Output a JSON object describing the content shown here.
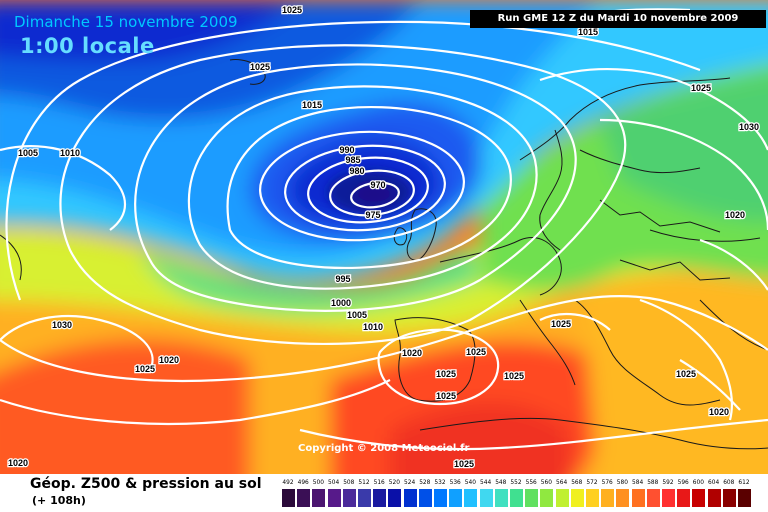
{
  "header": {
    "date": "Dimanche 15 novembre 2009",
    "time": "1:00 locale",
    "run": "Run GME 12 Z du Mardi 10 novembre 2009"
  },
  "copyright": "Copyright © 2008 Meteociel.fr",
  "footer": {
    "title": "Géop. Z500 & pression au sol",
    "subtitle": "(+ 108h)"
  },
  "legend": {
    "values": [
      "492",
      "496",
      "500",
      "504",
      "508",
      "512",
      "516",
      "520",
      "524",
      "528",
      "532",
      "536",
      "540",
      "544",
      "548",
      "552",
      "556",
      "560",
      "564",
      "568",
      "572",
      "576",
      "580",
      "584",
      "588",
      "592",
      "596",
      "600",
      "604",
      "608",
      "612"
    ],
    "colors": [
      "#2b0a3a",
      "#3a0f55",
      "#4b1570",
      "#571a8a",
      "#4b2a9a",
      "#3a3aaa",
      "#1a1aa0",
      "#0a10a8",
      "#0030d0",
      "#0050e8",
      "#0078ff",
      "#10a0ff",
      "#20c0ff",
      "#40d8f0",
      "#40e0c0",
      "#40e090",
      "#60e060",
      "#90e840",
      "#c0f030",
      "#f0f020",
      "#ffd020",
      "#ffb020",
      "#ff9020",
      "#ff7020",
      "#ff5030",
      "#ff3030",
      "#e81818",
      "#c80000",
      "#b00000",
      "#8a0000",
      "#5a0000"
    ]
  },
  "pressure_labels": [
    {
      "text": "1025"
    },
    {
      "text": "1025"
    },
    {
      "text": "1015"
    },
    {
      "text": "1015"
    },
    {
      "text": "1005"
    },
    {
      "text": "1010"
    },
    {
      "text": "990"
    },
    {
      "text": "985"
    },
    {
      "text": "980"
    },
    {
      "text": "970"
    },
    {
      "text": "975"
    },
    {
      "text": "995"
    },
    {
      "text": "1000"
    },
    {
      "text": "1005"
    },
    {
      "text": "1010"
    },
    {
      "text": "1025"
    },
    {
      "text": "1030"
    },
    {
      "text": "1020"
    },
    {
      "text": "1030"
    },
    {
      "text": "1020"
    },
    {
      "text": "1025"
    },
    {
      "text": "1020"
    },
    {
      "text": "1025"
    },
    {
      "text": "1025"
    },
    {
      "text": "1025"
    },
    {
      "text": "1025"
    },
    {
      "text": "1025"
    },
    {
      "text": "1025"
    },
    {
      "text": "1020"
    },
    {
      "text": "1020"
    },
    {
      "text": "1025"
    }
  ],
  "colors": {
    "title_blue": "#00c8ff",
    "isobar": "#ffffff",
    "coast": "#1a1a1a",
    "run_bg": "#000000"
  }
}
